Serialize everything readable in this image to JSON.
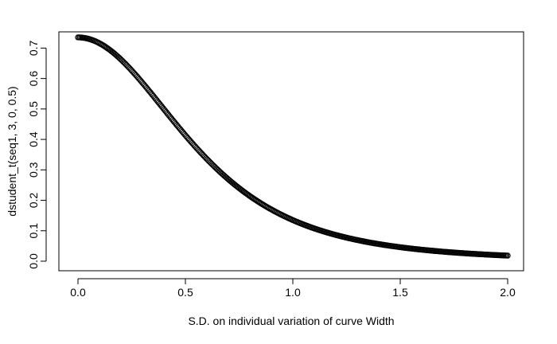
{
  "chart_data": {
    "type": "scatter",
    "title": "",
    "xlabel": "S.D. on individual variation of curve Width",
    "ylabel": "dstudent_t(seq1, 3, 0, 0.5)",
    "xlim": [
      0,
      2
    ],
    "ylim": [
      0,
      0.735
    ],
    "x_ticks": [
      0.0,
      0.5,
      1.0,
      1.5,
      2.0
    ],
    "x_tick_labels": [
      "0.0",
      "0.5",
      "1.0",
      "1.5",
      "2.0"
    ],
    "y_ticks": [
      0.0,
      0.1,
      0.2,
      0.3,
      0.4,
      0.5,
      0.6,
      0.7
    ],
    "y_tick_labels": [
      "0.0",
      "0.1",
      "0.2",
      "0.3",
      "0.4",
      "0.5",
      "0.6",
      "0.7"
    ],
    "grid": false,
    "series": [
      {
        "name": "dstudent_t(seq1, 3, 0, 0.5)",
        "marker": "open-circle",
        "color": "#000000",
        "distribution": {
          "df": 3,
          "mu": 0,
          "sigma": 0.5
        },
        "x_from": 0,
        "x_to": 2,
        "n_points": 400
      }
    ]
  }
}
